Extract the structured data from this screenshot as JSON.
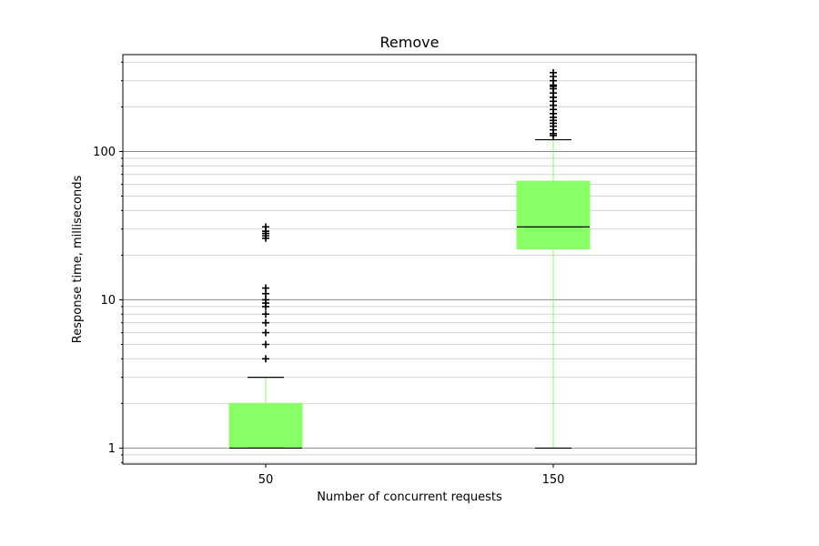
{
  "chart_data": {
    "type": "boxplot",
    "title": "Remove",
    "xlabel": "Number of concurrent requests",
    "ylabel": "Response time, milliseconds",
    "yscale": "log",
    "ylim": [
      0.78,
      450
    ],
    "y_tick_labels": [
      {
        "value": 1,
        "label": "1"
      },
      {
        "value": 10,
        "label": "10"
      },
      {
        "value": 100,
        "label": "100"
      }
    ],
    "grid": "y-major-and-minor",
    "colors": {
      "box_fill": "#88ff66",
      "whisker": "#88ff66",
      "median": "#000000",
      "cap": "#000000",
      "flier": "#000000",
      "major_grid": "#888888",
      "minor_grid": "#d3d3d3"
    },
    "categories": [
      "50",
      "150"
    ],
    "boxes": [
      {
        "category": "50",
        "whisker_low": 1,
        "q1": 1,
        "median": 1,
        "q3": 2,
        "whisker_high": 3,
        "fliers": [
          4,
          5,
          6,
          7,
          8,
          9,
          9.5,
          10,
          11,
          12,
          26,
          27,
          28,
          29,
          31
        ]
      },
      {
        "category": "150",
        "whisker_low": 1,
        "q1": 22,
        "median": 31,
        "q3": 63,
        "whisker_high": 120,
        "fliers": [
          128,
          132,
          140,
          148,
          155,
          162,
          170,
          180,
          192,
          205,
          218,
          232,
          248,
          265,
          275,
          280,
          300,
          320,
          340
        ]
      }
    ]
  }
}
